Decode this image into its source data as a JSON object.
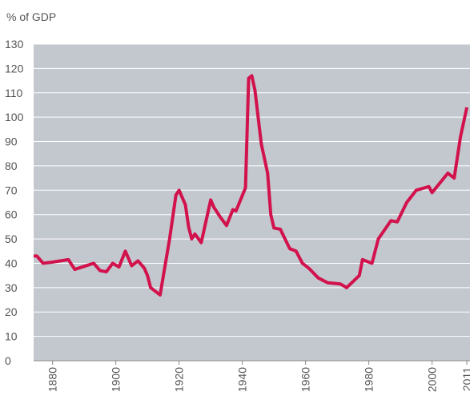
{
  "chart_data": {
    "type": "line",
    "y_axis_label": "% of GDP",
    "x": [
      1874,
      1875,
      1877,
      1880,
      1885,
      1887,
      1893,
      1895,
      1897,
      1899,
      1901,
      1903,
      1905,
      1907,
      1909,
      1910,
      1911,
      1914,
      1917,
      1919,
      1920,
      1922,
      1923,
      1924,
      1925,
      1927,
      1930,
      1931,
      1933,
      1935,
      1937,
      1938,
      1941,
      1942,
      1943,
      1944,
      1946,
      1948,
      1949,
      1950,
      1952,
      1955,
      1957,
      1959,
      1961,
      1964,
      1967,
      1971,
      1973,
      1977,
      1978,
      1981,
      1983,
      1987,
      1989,
      1992,
      1995,
      1999,
      2000,
      2005,
      2007,
      2009,
      2011
    ],
    "series": [
      {
        "color": "#d2124c",
        "values": [
          43,
          43,
          40,
          40.5,
          41.5,
          37.5,
          40,
          37,
          36.5,
          40,
          38.5,
          45,
          39,
          41,
          38,
          35,
          30,
          27,
          50,
          68,
          70,
          64,
          55,
          50,
          52,
          48.5,
          66,
          63,
          59,
          55.5,
          62,
          61.5,
          71,
          116,
          117,
          111,
          89,
          77,
          60,
          54.5,
          54,
          46,
          45,
          40,
          38,
          34,
          32,
          31.5,
          30,
          35,
          41.5,
          40,
          50,
          57.5,
          57,
          65,
          70,
          71.5,
          69,
          77,
          75,
          92,
          104
        ]
      }
    ],
    "xlim": [
      1874,
      2012
    ],
    "xticks": [
      1880,
      1900,
      1920,
      1940,
      1960,
      1980,
      2000,
      2011
    ],
    "ylim": [
      0,
      130
    ],
    "yticks": [
      0,
      10,
      20,
      30,
      40,
      50,
      60,
      70,
      80,
      90,
      100,
      110,
      120,
      130
    ],
    "grid": true,
    "background": "#c3c8cf"
  }
}
